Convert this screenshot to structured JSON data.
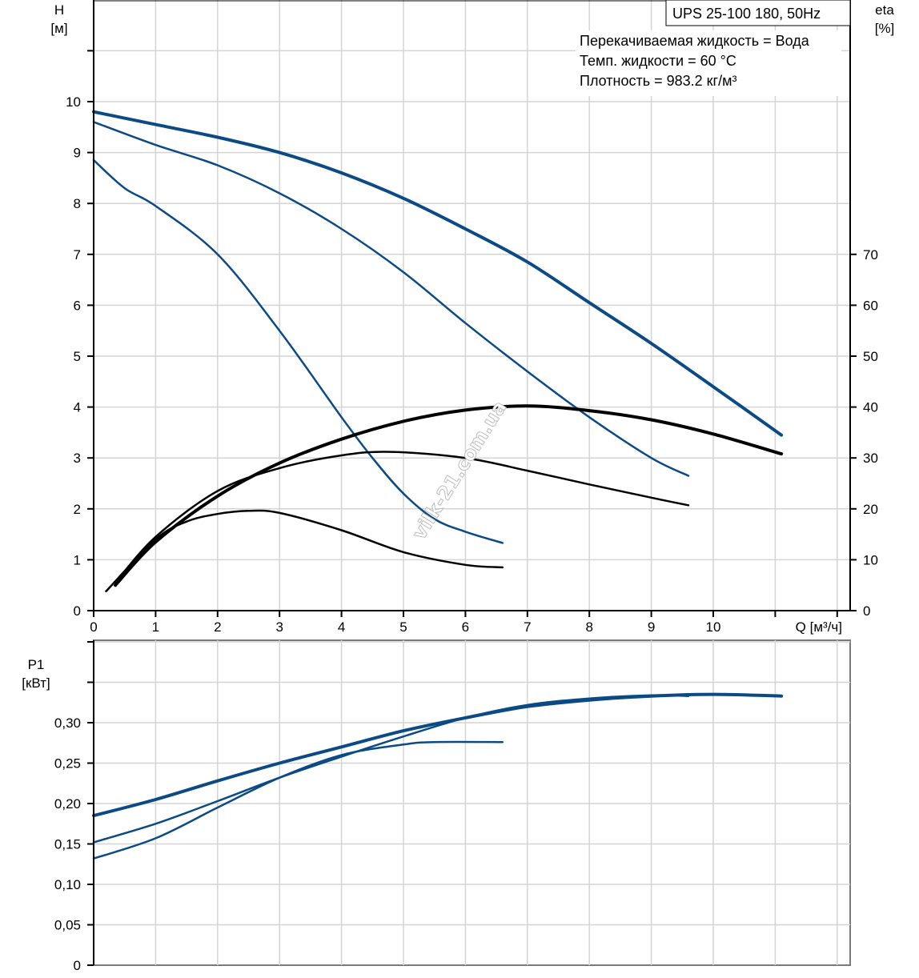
{
  "chart_data": [
    {
      "id": "qh",
      "type": "line",
      "title": "UPS 25-100  180, 50Hz",
      "info_lines": [
        "Перекачиваемая жидкость = Вода",
        "Темп. жидкости = 60 °C",
        "Плотность = 983.2 кг/м³"
      ],
      "xlabel": "Q [м³/ч]",
      "ylabel": [
        "H",
        "[м]"
      ],
      "y2label": [
        "eta",
        "[%]"
      ],
      "xlim": [
        0,
        12
      ],
      "ylim": [
        0,
        12
      ],
      "y2lim": [
        0,
        120
      ],
      "x_ticks": [
        "0",
        "1",
        "2",
        "3",
        "4",
        "5",
        "6",
        "7",
        "8",
        "9",
        "10",
        "",
        ""
      ],
      "y_ticks": [
        "0",
        "1",
        "2",
        "3",
        "4",
        "5",
        "6",
        "7",
        "8",
        "9",
        "10",
        "",
        ""
      ],
      "y2_ticks": [
        "0",
        "10",
        "20",
        "30",
        "40",
        "50",
        "60",
        "70"
      ],
      "grid": true,
      "watermark": "vilk-21.com.ua",
      "series": [
        {
          "name": "H speed 3",
          "axis": "left",
          "color": "#0b4a84",
          "weight": "bold",
          "x": [
            0,
            1,
            2,
            3,
            4,
            5,
            6,
            7,
            8,
            9,
            10,
            11.1
          ],
          "y": [
            9.8,
            9.55,
            9.3,
            9.0,
            8.6,
            8.1,
            7.5,
            6.85,
            6.05,
            5.25,
            4.4,
            3.45
          ]
        },
        {
          "name": "H speed 2",
          "axis": "left",
          "color": "#0b4a84",
          "weight": "normal",
          "x": [
            0,
            1,
            2,
            3,
            4,
            5,
            6,
            7,
            8,
            9,
            9.6
          ],
          "y": [
            9.6,
            9.15,
            8.75,
            8.2,
            7.5,
            6.65,
            5.65,
            4.7,
            3.8,
            3.0,
            2.65
          ]
        },
        {
          "name": "H speed 1",
          "axis": "left",
          "color": "#0b4a84",
          "weight": "normal",
          "x": [
            0,
            0.5,
            1,
            2,
            3,
            4,
            4.5,
            5,
            5.5,
            6,
            6.6
          ],
          "y": [
            8.85,
            8.3,
            7.95,
            7.0,
            5.5,
            3.8,
            3.0,
            2.3,
            1.8,
            1.55,
            1.33
          ]
        },
        {
          "name": "eta speed 3",
          "axis": "right",
          "color": "#000000",
          "weight": "bold",
          "x": [
            0.35,
            1,
            2,
            3,
            4,
            5,
            6,
            7,
            8,
            9,
            10,
            11.1
          ],
          "y": [
            5,
            13.5,
            22.5,
            29,
            33.7,
            37.2,
            39.4,
            40.2,
            39.3,
            37.5,
            34.7,
            30.8
          ]
        },
        {
          "name": "eta speed 2",
          "axis": "right",
          "color": "#000000",
          "weight": "normal",
          "x": [
            0.35,
            1,
            2,
            3,
            4,
            4.8,
            6,
            7,
            8,
            9,
            9.6
          ],
          "y": [
            5.5,
            14.5,
            23.5,
            28,
            30.5,
            31.2,
            30,
            27.5,
            24.8,
            22.2,
            20.7
          ]
        },
        {
          "name": "eta speed 1",
          "axis": "right",
          "color": "#000000",
          "weight": "normal",
          "x": [
            0.2,
            1,
            1.5,
            2,
            2.5,
            3,
            4,
            5,
            6,
            6.6
          ],
          "y": [
            3.8,
            14,
            17.5,
            19,
            19.6,
            19.2,
            15.8,
            11.5,
            9,
            8.5
          ]
        }
      ]
    },
    {
      "id": "p1",
      "type": "line",
      "title": "",
      "xlabel": "",
      "ylabel": [
        "P1",
        "[кВт]"
      ],
      "xlim": [
        0,
        12
      ],
      "ylim": [
        0,
        0.4
      ],
      "y_ticks": [
        "0",
        "0,05",
        "0,10",
        "0,15",
        "0,20",
        "0,25",
        "0,30",
        "",
        ""
      ],
      "grid": true,
      "series": [
        {
          "name": "P1 speed 3",
          "color": "#0b4a84",
          "weight": "bold",
          "x": [
            0,
            1,
            2,
            3,
            4,
            5,
            6,
            7,
            8,
            9,
            10,
            11.1
          ],
          "y": [
            0.185,
            0.205,
            0.228,
            0.25,
            0.27,
            0.29,
            0.306,
            0.32,
            0.328,
            0.333,
            0.335,
            0.333
          ]
        },
        {
          "name": "P1 speed 2",
          "color": "#0b4a84",
          "weight": "normal",
          "x": [
            0,
            1,
            2,
            3,
            4,
            5,
            6,
            7,
            8,
            9,
            9.6
          ],
          "y": [
            0.152,
            0.175,
            0.203,
            0.232,
            0.258,
            0.283,
            0.306,
            0.322,
            0.33,
            0.334,
            0.333
          ]
        },
        {
          "name": "P1 speed 1",
          "color": "#0b4a84",
          "weight": "normal",
          "x": [
            0,
            1,
            2,
            3,
            4,
            5,
            5.5,
            6.6
          ],
          "y": [
            0.132,
            0.157,
            0.195,
            0.232,
            0.26,
            0.273,
            0.276,
            0.276
          ]
        }
      ]
    }
  ]
}
